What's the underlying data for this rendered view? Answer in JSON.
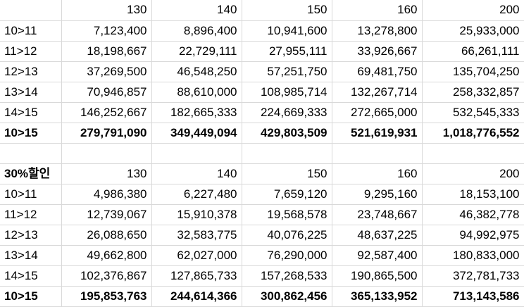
{
  "table1": {
    "header": [
      "",
      "130",
      "140",
      "150",
      "160",
      "200"
    ],
    "rows": [
      {
        "label": "10>11",
        "values": [
          "7,123,400",
          "8,896,400",
          "10,941,600",
          "13,278,800",
          "25,933,000"
        ]
      },
      {
        "label": "11>12",
        "values": [
          "18,198,667",
          "22,729,111",
          "27,955,111",
          "33,926,667",
          "66,261,111"
        ]
      },
      {
        "label": "12>13",
        "values": [
          "37,269,500",
          "46,548,250",
          "57,251,750",
          "69,481,750",
          "135,704,250"
        ]
      },
      {
        "label": "13>14",
        "values": [
          "70,946,857",
          "88,610,000",
          "108,985,714",
          "132,267,714",
          "258,332,857"
        ]
      },
      {
        "label": "14>15",
        "values": [
          "146,252,667",
          "182,665,333",
          "224,669,333",
          "272,665,000",
          "532,545,333"
        ]
      }
    ],
    "total": {
      "label": "10>15",
      "values": [
        "279,791,090",
        "349,449,094",
        "429,803,509",
        "521,619,931",
        "1,018,776,552"
      ]
    }
  },
  "table2": {
    "header": [
      "30%할인",
      "130",
      "140",
      "150",
      "160",
      "200"
    ],
    "rows": [
      {
        "label": "10>11",
        "values": [
          "4,986,380",
          "6,227,480",
          "7,659,120",
          "9,295,160",
          "18,153,100"
        ]
      },
      {
        "label": "11>12",
        "values": [
          "12,739,067",
          "15,910,378",
          "19,568,578",
          "23,748,667",
          "46,382,778"
        ]
      },
      {
        "label": "12>13",
        "values": [
          "26,088,650",
          "32,583,775",
          "40,076,225",
          "48,637,225",
          "94,992,975"
        ]
      },
      {
        "label": "13>14",
        "values": [
          "49,662,800",
          "62,027,000",
          "76,290,000",
          "92,587,400",
          "180,833,000"
        ]
      },
      {
        "label": "14>15",
        "values": [
          "102,376,867",
          "127,865,733",
          "157,268,533",
          "190,865,500",
          "372,781,733"
        ]
      }
    ],
    "total": {
      "label": "10>15",
      "values": [
        "195,853,763",
        "244,614,366",
        "300,862,456",
        "365,133,952",
        "713,143,586"
      ]
    }
  }
}
